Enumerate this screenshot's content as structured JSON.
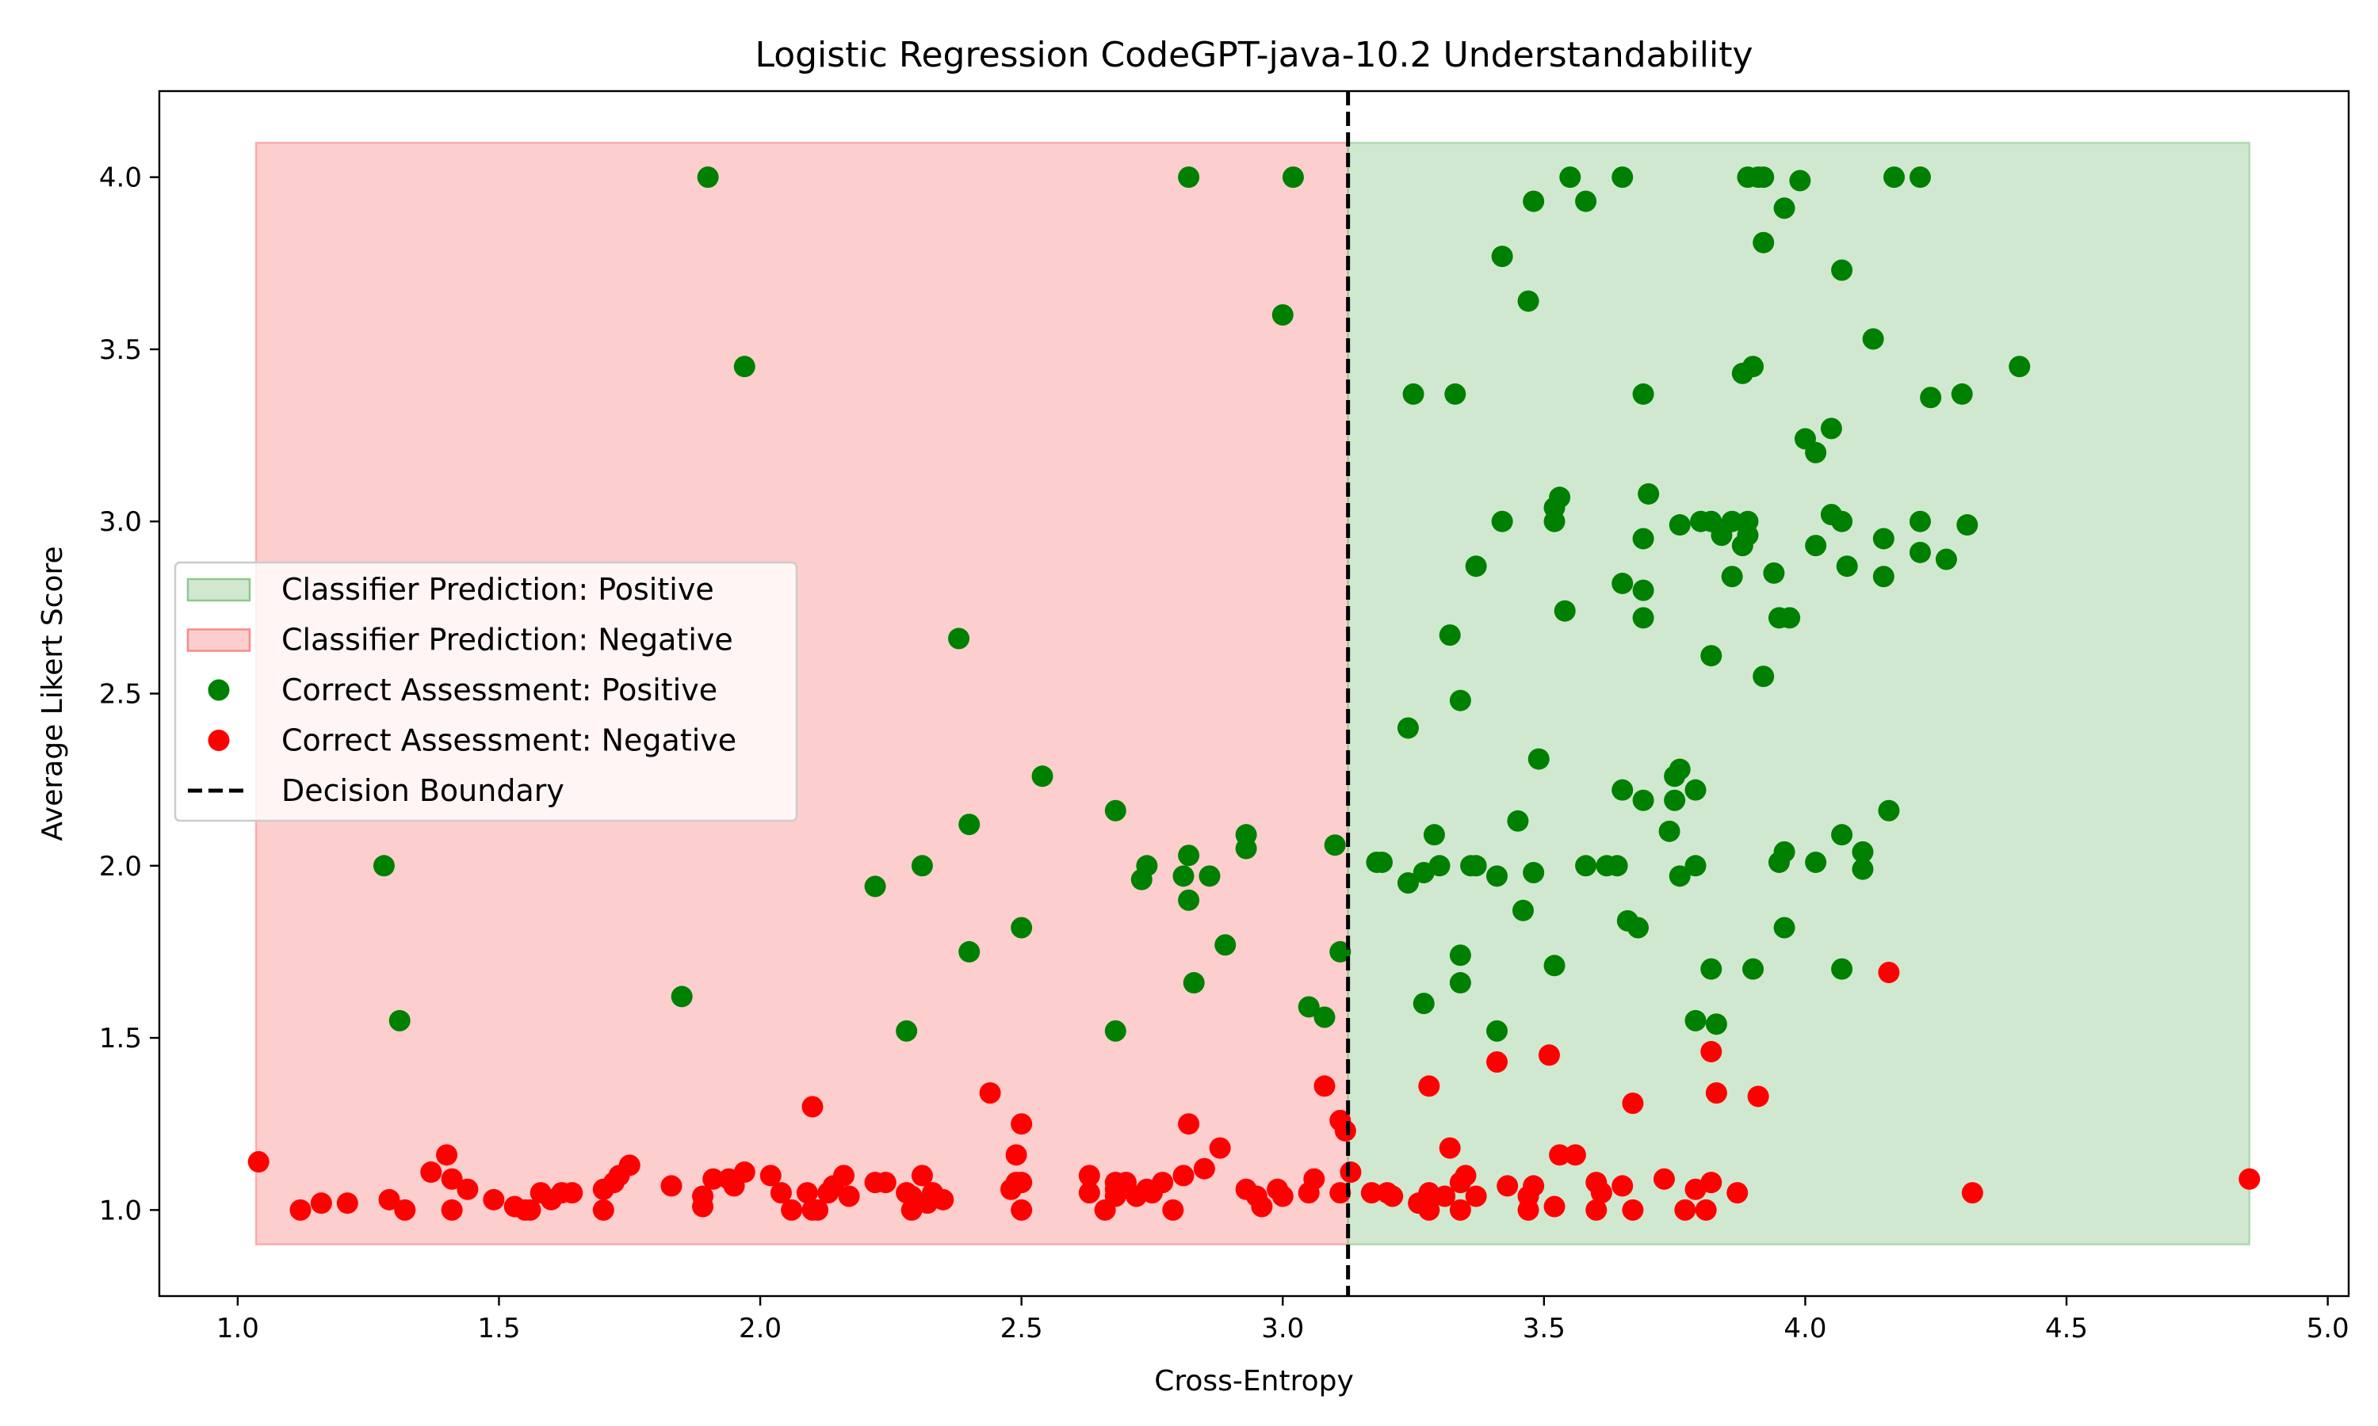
{
  "chart_data": {
    "type": "scatter",
    "title": "Logistic Regression CodeGPT-java-10.2 Understandability",
    "xlabel": "Cross-Entropy",
    "ylabel": "Average Likert Score",
    "xlim": [
      0.85,
      5.04
    ],
    "ylim": [
      0.75,
      4.25
    ],
    "x_ticks": [
      1.0,
      1.5,
      2.0,
      2.5,
      3.0,
      3.5,
      4.0,
      4.5,
      5.0
    ],
    "x_tick_labels": [
      "1.0",
      "1.5",
      "2.0",
      "2.5",
      "3.0",
      "3.5",
      "4.0",
      "4.5",
      "5.0"
    ],
    "y_ticks": [
      1.0,
      1.5,
      2.0,
      2.5,
      3.0,
      3.5,
      4.0
    ],
    "y_tick_labels": [
      "1.0",
      "1.5",
      "2.0",
      "2.5",
      "3.0",
      "3.5",
      "4.0"
    ],
    "grid": false,
    "legend_placement": "center-left",
    "decision_boundary_x": 3.125,
    "regions": [
      {
        "name": "Classifier Prediction: Negative",
        "x_range": [
          1.035,
          3.125
        ],
        "y_range": [
          0.9,
          4.1
        ],
        "color": "#f88a8a"
      },
      {
        "name": "Classifier Prediction: Positive",
        "x_range": [
          3.125,
          4.85
        ],
        "y_range": [
          0.9,
          4.1
        ],
        "color": "#8ec98e"
      }
    ],
    "series": [
      {
        "name": "Correct Assessment: Positive",
        "color": "#008000",
        "points": [
          [
            1.9,
            4.0
          ],
          [
            2.82,
            4.0
          ],
          [
            3.02,
            4.0
          ],
          [
            3.55,
            4.0
          ],
          [
            3.65,
            4.0
          ],
          [
            3.89,
            4.0
          ],
          [
            3.91,
            4.0
          ],
          [
            3.92,
            4.0
          ],
          [
            4.17,
            4.0
          ],
          [
            4.22,
            4.0
          ],
          [
            3.99,
            3.99
          ],
          [
            3.48,
            3.93
          ],
          [
            3.58,
            3.93
          ],
          [
            3.96,
            3.91
          ],
          [
            3.92,
            3.81
          ],
          [
            3.42,
            3.77
          ],
          [
            4.07,
            3.73
          ],
          [
            3.47,
            3.64
          ],
          [
            3.0,
            3.6
          ],
          [
            4.13,
            3.53
          ],
          [
            1.97,
            3.45
          ],
          [
            3.9,
            3.45
          ],
          [
            4.41,
            3.45
          ],
          [
            3.88,
            3.43
          ],
          [
            3.25,
            3.37
          ],
          [
            3.33,
            3.37
          ],
          [
            3.69,
            3.37
          ],
          [
            4.3,
            3.37
          ],
          [
            4.24,
            3.36
          ],
          [
            4.05,
            3.27
          ],
          [
            4.0,
            3.24
          ],
          [
            4.02,
            3.2
          ],
          [
            3.7,
            3.08
          ],
          [
            3.53,
            3.07
          ],
          [
            3.52,
            3.04
          ],
          [
            4.05,
            3.02
          ],
          [
            3.42,
            3.0
          ],
          [
            3.52,
            3.0
          ],
          [
            3.8,
            3.0
          ],
          [
            3.82,
            3.0
          ],
          [
            3.86,
            3.0
          ],
          [
            3.89,
            3.0
          ],
          [
            4.07,
            3.0
          ],
          [
            4.22,
            3.0
          ],
          [
            3.76,
            2.99
          ],
          [
            4.31,
            2.99
          ],
          [
            3.84,
            2.96
          ],
          [
            3.89,
            2.96
          ],
          [
            3.69,
            2.95
          ],
          [
            4.15,
            2.95
          ],
          [
            3.88,
            2.93
          ],
          [
            4.02,
            2.93
          ],
          [
            4.22,
            2.91
          ],
          [
            4.27,
            2.89
          ],
          [
            3.37,
            2.87
          ],
          [
            4.08,
            2.87
          ],
          [
            3.94,
            2.85
          ],
          [
            3.65,
            2.82
          ],
          [
            3.86,
            2.84
          ],
          [
            4.15,
            2.84
          ],
          [
            3.69,
            2.8
          ],
          [
            3.54,
            2.74
          ],
          [
            3.69,
            2.72
          ],
          [
            3.95,
            2.72
          ],
          [
            3.97,
            2.72
          ],
          [
            3.32,
            2.67
          ],
          [
            2.38,
            2.66
          ],
          [
            3.82,
            2.61
          ],
          [
            3.92,
            2.55
          ],
          [
            3.34,
            2.48
          ],
          [
            3.24,
            2.4
          ],
          [
            3.49,
            2.31
          ],
          [
            3.76,
            2.28
          ],
          [
            3.75,
            2.26
          ],
          [
            2.54,
            2.26
          ],
          [
            3.79,
            2.22
          ],
          [
            3.65,
            2.22
          ],
          [
            3.69,
            2.19
          ],
          [
            3.75,
            2.19
          ],
          [
            2.68,
            2.16
          ],
          [
            4.16,
            2.16
          ],
          [
            3.45,
            2.13
          ],
          [
            2.4,
            2.12
          ],
          [
            3.74,
            2.1
          ],
          [
            2.93,
            2.09
          ],
          [
            3.29,
            2.09
          ],
          [
            4.07,
            2.09
          ],
          [
            3.1,
            2.06
          ],
          [
            2.93,
            2.05
          ],
          [
            3.96,
            2.04
          ],
          [
            4.11,
            2.04
          ],
          [
            2.82,
            2.03
          ],
          [
            3.18,
            2.01
          ],
          [
            3.19,
            2.01
          ],
          [
            3.95,
            2.01
          ],
          [
            4.02,
            2.01
          ],
          [
            1.28,
            2.0
          ],
          [
            2.31,
            2.0
          ],
          [
            2.74,
            2.0
          ],
          [
            3.3,
            2.0
          ],
          [
            3.36,
            2.0
          ],
          [
            3.37,
            2.0
          ],
          [
            3.58,
            2.0
          ],
          [
            3.62,
            2.0
          ],
          [
            3.64,
            2.0
          ],
          [
            3.79,
            2.0
          ],
          [
            3.27,
            1.98
          ],
          [
            3.48,
            1.98
          ],
          [
            4.11,
            1.99
          ],
          [
            2.81,
            1.97
          ],
          [
            2.86,
            1.97
          ],
          [
            3.41,
            1.97
          ],
          [
            3.76,
            1.97
          ],
          [
            2.73,
            1.96
          ],
          [
            3.24,
            1.95
          ],
          [
            2.22,
            1.94
          ],
          [
            2.82,
            1.9
          ],
          [
            3.46,
            1.87
          ],
          [
            3.66,
            1.84
          ],
          [
            2.5,
            1.82
          ],
          [
            3.68,
            1.82
          ],
          [
            3.96,
            1.82
          ],
          [
            2.89,
            1.77
          ],
          [
            2.4,
            1.75
          ],
          [
            3.11,
            1.75
          ],
          [
            3.34,
            1.74
          ],
          [
            3.52,
            1.71
          ],
          [
            3.82,
            1.7
          ],
          [
            3.9,
            1.7
          ],
          [
            4.07,
            1.7
          ],
          [
            2.83,
            1.66
          ],
          [
            3.34,
            1.66
          ],
          [
            1.85,
            1.62
          ],
          [
            3.27,
            1.6
          ],
          [
            3.05,
            1.59
          ],
          [
            3.08,
            1.56
          ],
          [
            1.31,
            1.55
          ],
          [
            3.79,
            1.55
          ],
          [
            3.83,
            1.54
          ],
          [
            2.28,
            1.52
          ],
          [
            2.68,
            1.52
          ],
          [
            3.41,
            1.52
          ]
        ]
      },
      {
        "name": "Correct Assessment: Negative",
        "color": "#ff0000",
        "points": [
          [
            4.16,
            1.69
          ],
          [
            3.82,
            1.46
          ],
          [
            3.51,
            1.45
          ],
          [
            3.41,
            1.43
          ],
          [
            3.28,
            1.36
          ],
          [
            3.08,
            1.36
          ],
          [
            2.44,
            1.34
          ],
          [
            3.83,
            1.34
          ],
          [
            3.91,
            1.33
          ],
          [
            2.1,
            1.3
          ],
          [
            3.67,
            1.31
          ],
          [
            3.11,
            1.26
          ],
          [
            2.5,
            1.25
          ],
          [
            2.82,
            1.25
          ],
          [
            3.12,
            1.23
          ],
          [
            2.88,
            1.18
          ],
          [
            3.32,
            1.18
          ],
          [
            2.49,
            1.16
          ],
          [
            1.4,
            1.16
          ],
          [
            3.53,
            1.16
          ],
          [
            3.56,
            1.16
          ],
          [
            1.04,
            1.14
          ],
          [
            1.75,
            1.13
          ],
          [
            2.85,
            1.12
          ],
          [
            1.73,
            1.1
          ],
          [
            2.16,
            1.1
          ],
          [
            2.31,
            1.1
          ],
          [
            2.63,
            1.1
          ],
          [
            2.81,
            1.1
          ],
          [
            3.13,
            1.11
          ],
          [
            3.35,
            1.1
          ],
          [
            1.37,
            1.11
          ],
          [
            1.97,
            1.11
          ],
          [
            2.02,
            1.1
          ],
          [
            1.41,
            1.09
          ],
          [
            1.72,
            1.08
          ],
          [
            1.91,
            1.09
          ],
          [
            1.94,
            1.09
          ],
          [
            2.22,
            1.08
          ],
          [
            2.24,
            1.08
          ],
          [
            2.49,
            1.08
          ],
          [
            2.5,
            1.08
          ],
          [
            2.68,
            1.08
          ],
          [
            2.7,
            1.08
          ],
          [
            2.77,
            1.08
          ],
          [
            3.06,
            1.09
          ],
          [
            3.34,
            1.08
          ],
          [
            3.6,
            1.08
          ],
          [
            3.73,
            1.09
          ],
          [
            3.82,
            1.08
          ],
          [
            4.85,
            1.09
          ],
          [
            1.83,
            1.07
          ],
          [
            1.95,
            1.07
          ],
          [
            2.14,
            1.07
          ],
          [
            2.48,
            1.06
          ],
          [
            2.68,
            1.06
          ],
          [
            2.74,
            1.06
          ],
          [
            2.93,
            1.06
          ],
          [
            2.99,
            1.06
          ],
          [
            3.43,
            1.07
          ],
          [
            3.48,
            1.07
          ],
          [
            3.65,
            1.07
          ],
          [
            3.79,
            1.06
          ],
          [
            1.44,
            1.06
          ],
          [
            1.58,
            1.05
          ],
          [
            1.62,
            1.05
          ],
          [
            1.64,
            1.05
          ],
          [
            1.7,
            1.06
          ],
          [
            2.04,
            1.05
          ],
          [
            2.09,
            1.05
          ],
          [
            2.13,
            1.05
          ],
          [
            2.28,
            1.05
          ],
          [
            2.33,
            1.05
          ],
          [
            2.63,
            1.05
          ],
          [
            2.75,
            1.05
          ],
          [
            3.05,
            1.05
          ],
          [
            3.11,
            1.05
          ],
          [
            3.17,
            1.05
          ],
          [
            3.2,
            1.05
          ],
          [
            3.28,
            1.05
          ],
          [
            3.61,
            1.05
          ],
          [
            3.87,
            1.05
          ],
          [
            4.32,
            1.05
          ],
          [
            1.29,
            1.03
          ],
          [
            1.49,
            1.03
          ],
          [
            1.6,
            1.03
          ],
          [
            1.89,
            1.04
          ],
          [
            2.17,
            1.04
          ],
          [
            2.29,
            1.04
          ],
          [
            2.35,
            1.03
          ],
          [
            2.68,
            1.04
          ],
          [
            2.72,
            1.04
          ],
          [
            2.95,
            1.04
          ],
          [
            3.0,
            1.04
          ],
          [
            3.21,
            1.04
          ],
          [
            3.31,
            1.04
          ],
          [
            3.37,
            1.04
          ],
          [
            3.47,
            1.04
          ],
          [
            1.16,
            1.02
          ],
          [
            1.21,
            1.02
          ],
          [
            2.32,
            1.02
          ],
          [
            3.26,
            1.02
          ],
          [
            3.52,
            1.01
          ],
          [
            1.12,
            1.0
          ],
          [
            1.32,
            1.0
          ],
          [
            1.41,
            1.0
          ],
          [
            1.53,
            1.01
          ],
          [
            1.55,
            1.0
          ],
          [
            1.56,
            1.0
          ],
          [
            1.7,
            1.0
          ],
          [
            1.89,
            1.01
          ],
          [
            2.06,
            1.0
          ],
          [
            2.1,
            1.0
          ],
          [
            2.11,
            1.0
          ],
          [
            2.29,
            1.0
          ],
          [
            2.5,
            1.0
          ],
          [
            2.66,
            1.0
          ],
          [
            2.79,
            1.0
          ],
          [
            2.96,
            1.01
          ],
          [
            3.28,
            1.0
          ],
          [
            3.34,
            1.0
          ],
          [
            3.47,
            1.0
          ],
          [
            3.6,
            1.0
          ],
          [
            3.67,
            1.0
          ],
          [
            3.77,
            1.0
          ],
          [
            3.81,
            1.0
          ]
        ]
      }
    ],
    "legend": [
      {
        "label": "Classifier Prediction: Positive",
        "kind": "patch",
        "color": "#8ec98e"
      },
      {
        "label": "Classifier Prediction: Negative",
        "kind": "patch",
        "color": "#f88a8a"
      },
      {
        "label": "Correct Assessment: Positive",
        "kind": "marker",
        "color": "#008000"
      },
      {
        "label": "Correct Assessment: Negative",
        "kind": "marker",
        "color": "#ff0000"
      },
      {
        "label": "Decision Boundary",
        "kind": "dashed-line",
        "color": "#000000"
      }
    ]
  }
}
